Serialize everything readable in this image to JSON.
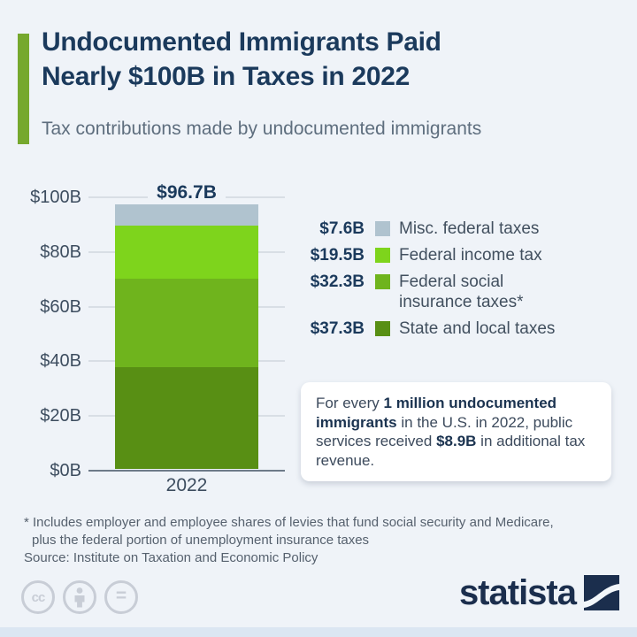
{
  "page": {
    "background": "#eff3f8"
  },
  "header": {
    "title_line1": "Undocumented Immigrants Paid",
    "title_line2": "Nearly $100B in Taxes in 2022",
    "subtitle": "Tax contributions made by undocumented immigrants",
    "accent_color": "#76a82e",
    "title_color": "#1b3a5c"
  },
  "chart_data": {
    "type": "bar",
    "stacked": true,
    "title": "Tax contributions made by undocumented immigrants",
    "categories": [
      "2022"
    ],
    "series": [
      {
        "name": "State and local taxes",
        "value": 37.3,
        "value_label": "$37.3B",
        "legend_label": "State and local taxes",
        "color": "#588f14"
      },
      {
        "name": "Federal social insurance taxes*",
        "value": 32.3,
        "value_label": "$32.3B",
        "legend_label": "Federal social\ninsurance taxes*",
        "color": "#6fb41d"
      },
      {
        "name": "Federal income tax",
        "value": 19.5,
        "value_label": "$19.5B",
        "legend_label": "Federal income tax",
        "color": "#7ed41c"
      },
      {
        "name": "Misc. federal taxes",
        "value": 7.6,
        "value_label": "$7.6B",
        "legend_label": "Misc. federal taxes",
        "color": "#b0c3cf"
      }
    ],
    "total": 96.7,
    "total_label": "$96.7B",
    "ylim": [
      0,
      100
    ],
    "yticks": [
      {
        "v": 0,
        "label": "$0B"
      },
      {
        "v": 20,
        "label": "$20B"
      },
      {
        "v": 40,
        "label": "$40B"
      },
      {
        "v": 60,
        "label": "$60B"
      },
      {
        "v": 80,
        "label": "$80B"
      },
      {
        "v": 100,
        "label": "$100B"
      }
    ],
    "grid": true,
    "legend_position": "right",
    "xlabel": "",
    "ylabel": ""
  },
  "callout": {
    "segments": [
      {
        "text": "For every ",
        "bold": false
      },
      {
        "text": "1 million undocumented immigrants",
        "bold": true
      },
      {
        "text": " in the U.S. in 2022, public services received ",
        "bold": false
      },
      {
        "text": "$8.9B",
        "bold": true
      },
      {
        "text": " in additional tax revenue.",
        "bold": false
      }
    ]
  },
  "footnote": {
    "line1": "* Includes employer and employee shares of levies that fund social security and Medicare,",
    "line2": "plus the federal portion of unemployment insurance taxes"
  },
  "source": "Source: Institute on Taxation and Economic Policy",
  "footer": {
    "license_icons": [
      "cc-icon",
      "attribution-person-icon",
      "equals-icon"
    ],
    "cc_text": "cc",
    "equals_text": "=",
    "brand_name": "statista",
    "brand_color": "#1b2e4d"
  }
}
